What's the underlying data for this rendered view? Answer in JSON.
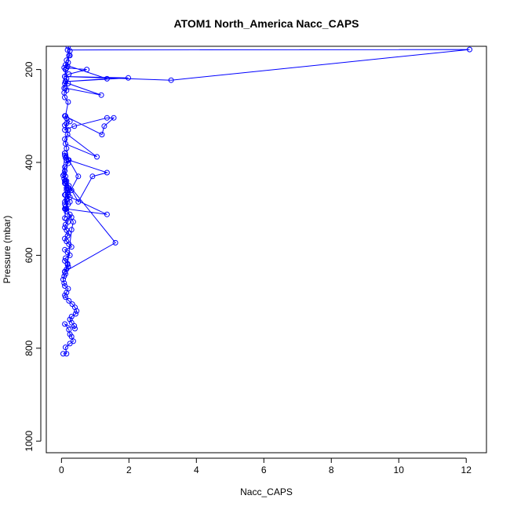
{
  "chart_data": {
    "type": "line",
    "title": "ATOM1 North_America Nacc_CAPS",
    "xlabel": "Nacc_CAPS",
    "ylabel": "Pressure (mbar)",
    "xlim": [
      -0.45,
      12.6
    ],
    "ylim": [
      1025,
      150
    ],
    "y_reversed": true,
    "x_ticks": [
      0,
      2,
      4,
      6,
      8,
      10,
      12
    ],
    "y_ticks": [
      200,
      400,
      600,
      800,
      1000
    ],
    "grid": false,
    "legend": "none",
    "series": [
      {
        "color": "#0000ff",
        "marker": "open-circle",
        "x": [
          0.05,
          0.15,
          0.12,
          0.25,
          0.35,
          0.3,
          0.25,
          0.22,
          0.1,
          0.4,
          0.38,
          0.3,
          0.25,
          0.3,
          0.42,
          0.45,
          0.4,
          0.32,
          0.22,
          0.12,
          0.1,
          0.15,
          0.2,
          0.1,
          0.08,
          0.05,
          0.08,
          0.12,
          0.1,
          0.15,
          0.2,
          0.18,
          0.1,
          0.12,
          0.25,
          0.18,
          0.1,
          0.3,
          0.22,
          0.15,
          0.1,
          0.18,
          0.22,
          0.15,
          0.1,
          0.12,
          0.2,
          0.15,
          0.3,
          0.25,
          0.15,
          0.1,
          0.12,
          0.2,
          0.1,
          0.15,
          0.25,
          0.1,
          0.2,
          0.3,
          0.15,
          0.22,
          0.1,
          0.12,
          1.6,
          0.1,
          0.18,
          0.3,
          0.35,
          0.12,
          0.1,
          0.2,
          0.12,
          0.08,
          0.1,
          0.1,
          0.2,
          0.15,
          0.12,
          0.1,
          0.1,
          0.5,
          0.2,
          0.1,
          0.12,
          1.35,
          0.15,
          0.1,
          0.25,
          0.15,
          0.12,
          0.08,
          0.2,
          0.1,
          0.05,
          0.15,
          0.5,
          0.92,
          1.35,
          0.22,
          0.15,
          0.1,
          0.18,
          1.05,
          0.12,
          0.2,
          0.1,
          0.25,
          0.15,
          0.1,
          1.2,
          1.27,
          1.55,
          1.35,
          0.38,
          0.1,
          0.15,
          0.12,
          0.2,
          0.1,
          0.08,
          0.15,
          0.12,
          1.18,
          0.2,
          0.12,
          0.1,
          0.08,
          0.15,
          0.12,
          0.1,
          3.25,
          12.1,
          0.18,
          0.25,
          0.15,
          0.12,
          1.35,
          0.12,
          1.98,
          0.1,
          0.22,
          0.75,
          0.08,
          0.18,
          0.12,
          0.15,
          0.2,
          0.22,
          0.25,
          0.2
        ],
        "y": [
          812,
          812,
          798,
          790,
          785,
          775,
          770,
          760,
          748,
          758,
          752,
          745,
          738,
          732,
          726,
          720,
          712,
          705,
          698,
          690,
          686,
          680,
          672,
          666,
          660,
          652,
          645,
          640,
          636,
          630,
          624,
          618,
          612,
          606,
          600,
          594,
          588,
          582,
          576,
          570,
          564,
          558,
          552,
          546,
          540,
          534,
          528,
          522,
          518,
          512,
          506,
          500,
          495,
          490,
          485,
          480,
          475,
          470,
          465,
          460,
          455,
          450,
          445,
          440,
          573,
          635,
          620,
          545,
          528,
          500,
          520,
          455,
          430,
          425,
          418,
          410,
          402,
          396,
          390,
          385,
          380,
          430,
          470,
          490,
          470,
          512,
          500,
          440,
          485,
          460,
          445,
          435,
          395,
          380,
          428,
          440,
          485,
          430,
          422,
          395,
          370,
          350,
          340,
          388,
          360,
          330,
          320,
          312,
          305,
          300,
          340,
          322,
          304,
          304,
          322,
          330,
          316,
          300,
          270,
          260,
          250,
          245,
          240,
          255,
          230,
          225,
          230,
          240,
          220,
          200,
          215,
          223,
          157,
          158,
          170,
          180,
          190,
          220,
          226,
          218,
          215,
          210,
          200,
          196,
          193,
          200,
          197,
          185,
          170,
          160,
          150
        ]
      }
    ]
  }
}
